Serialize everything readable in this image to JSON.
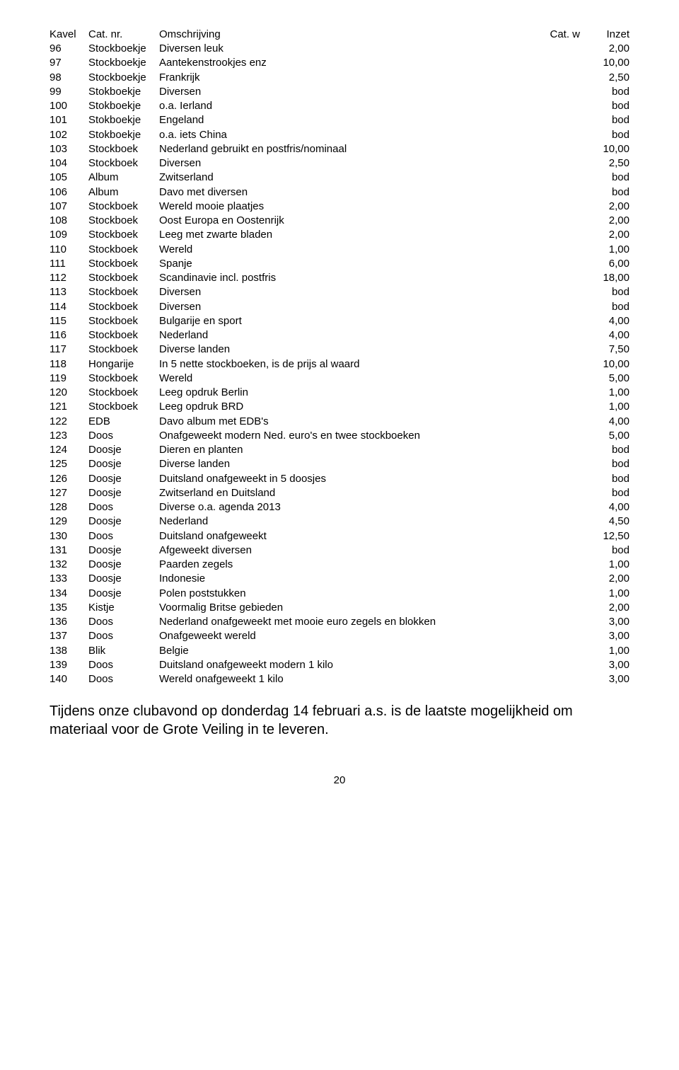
{
  "header": {
    "kavel": "Kavel",
    "cat_nr": "Cat. nr.",
    "omschrijving": "Omschrijving",
    "cat_w": "Cat. w",
    "inzet": "Inzet"
  },
  "rows": [
    {
      "n": "96",
      "c": "Stockboekje",
      "d": "Diversen leuk",
      "p": "2,00"
    },
    {
      "n": "97",
      "c": "Stockboekje",
      "d": "Aantekenstrookjes enz",
      "p": "10,00"
    },
    {
      "n": "98",
      "c": "Stockboekje",
      "d": "Frankrijk",
      "p": "2,50"
    },
    {
      "n": "99",
      "c": "Stokboekje",
      "d": "Diversen",
      "p": "bod"
    },
    {
      "n": "100",
      "c": "Stokboekje",
      "d": "o.a. Ierland",
      "p": "bod"
    },
    {
      "n": "101",
      "c": "Stokboekje",
      "d": "Engeland",
      "p": "bod"
    },
    {
      "n": "102",
      "c": "Stokboekje",
      "d": "o.a. iets China",
      "p": "bod"
    },
    {
      "n": "103",
      "c": "Stockboek",
      "d": "Nederland gebruikt en postfris/nominaal",
      "p": "10,00"
    },
    {
      "n": "104",
      "c": "Stockboek",
      "d": "Diversen",
      "p": "2,50"
    },
    {
      "n": "105",
      "c": "Album",
      "d": "Zwitserland",
      "p": "bod"
    },
    {
      "n": "106",
      "c": "Album",
      "d": "Davo met diversen",
      "p": "bod"
    },
    {
      "n": "107",
      "c": "Stockboek",
      "d": "Wereld mooie plaatjes",
      "p": "2,00"
    },
    {
      "n": "108",
      "c": "Stockboek",
      "d": "Oost Europa en Oostenrijk",
      "p": "2,00"
    },
    {
      "n": "109",
      "c": "Stockboek",
      "d": "Leeg met zwarte bladen",
      "p": "2,00"
    },
    {
      "n": "110",
      "c": "Stockboek",
      "d": "Wereld",
      "p": "1,00"
    },
    {
      "n": "111",
      "c": "Stockboek",
      "d": "Spanje",
      "p": "6,00"
    },
    {
      "n": "112",
      "c": "Stockboek",
      "d": "Scandinavie incl. postfris",
      "p": "18,00"
    },
    {
      "n": "113",
      "c": "Stockboek",
      "d": "Diversen",
      "p": "bod"
    },
    {
      "n": "114",
      "c": "Stockboek",
      "d": "Diversen",
      "p": "bod"
    },
    {
      "n": "115",
      "c": "Stockboek",
      "d": "Bulgarije en sport",
      "p": "4,00"
    },
    {
      "n": "116",
      "c": "Stockboek",
      "d": "Nederland",
      "p": "4,00"
    },
    {
      "n": "117",
      "c": "Stockboek",
      "d": "Diverse landen",
      "p": "7,50"
    },
    {
      "n": "118",
      "c": "Hongarije",
      "d": "In 5 nette stockboeken, is de prijs al waard",
      "p": "10,00"
    },
    {
      "n": "119",
      "c": "Stockboek",
      "d": "Wereld",
      "p": "5,00"
    },
    {
      "n": "120",
      "c": "Stockboek",
      "d": "Leeg opdruk Berlin",
      "p": "1,00"
    },
    {
      "n": "121",
      "c": "Stockboek",
      "d": "Leeg opdruk BRD",
      "p": "1,00"
    },
    {
      "n": "122",
      "c": "EDB",
      "d": "Davo album met EDB's",
      "p": "4,00"
    },
    {
      "n": "123",
      "c": "Doos",
      "d": "Onafgeweekt modern Ned. euro's en twee stockboeken",
      "p": "5,00"
    },
    {
      "n": "124",
      "c": "Doosje",
      "d": "Dieren en planten",
      "p": "bod"
    },
    {
      "n": "125",
      "c": "Doosje",
      "d": "Diverse landen",
      "p": "bod"
    },
    {
      "n": "126",
      "c": "Doosje",
      "d": "Duitsland onafgeweekt in 5 doosjes",
      "p": "bod"
    },
    {
      "n": "127",
      "c": "Doosje",
      "d": "Zwitserland en Duitsland",
      "p": "bod"
    },
    {
      "n": "128",
      "c": "Doos",
      "d": "Diverse o.a. agenda 2013",
      "p": "4,00"
    },
    {
      "n": "129",
      "c": "Doosje",
      "d": "Nederland",
      "p": "4,50"
    },
    {
      "n": "130",
      "c": "Doos",
      "d": "Duitsland onafgeweekt",
      "p": "12,50"
    },
    {
      "n": "131",
      "c": "Doosje",
      "d": "Afgeweekt diversen",
      "p": "bod"
    },
    {
      "n": "132",
      "c": "Doosje",
      "d": "Paarden zegels",
      "p": "1,00"
    },
    {
      "n": "133",
      "c": "Doosje",
      "d": "Indonesie",
      "p": "2,00"
    },
    {
      "n": "134",
      "c": "Doosje",
      "d": "Polen poststukken",
      "p": "1,00"
    },
    {
      "n": "135",
      "c": "Kistje",
      "d": "Voormalig Britse gebieden",
      "p": "2,00"
    },
    {
      "n": "136",
      "c": "Doos",
      "d": "Nederland onafgeweekt met mooie euro zegels en blokken",
      "p": "3,00"
    },
    {
      "n": "137",
      "c": "Doos",
      "d": "Onafgeweekt wereld",
      "p": "3,00"
    },
    {
      "n": "138",
      "c": "Blik",
      "d": "Belgie",
      "p": "1,00"
    },
    {
      "n": "139",
      "c": "Doos",
      "d": "Duitsland onafgeweekt modern 1 kilo",
      "p": "3,00"
    },
    {
      "n": "140",
      "c": "Doos",
      "d": "Wereld onafgeweekt 1 kilo",
      "p": "3,00"
    }
  ],
  "footer_note": "Tijdens onze clubavond op donderdag 14 februari a.s. is de laatste mogelijkheid om materiaal voor de Grote Veiling in te leveren.",
  "page_number": "20"
}
